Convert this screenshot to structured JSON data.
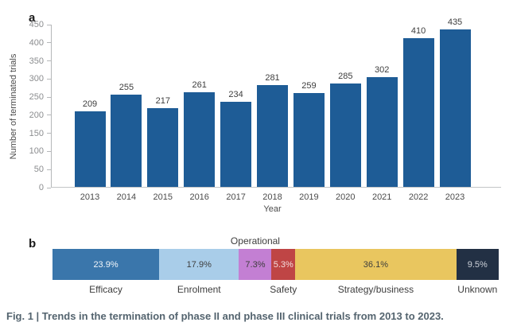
{
  "figure": {
    "caption": "Fig. 1 | Trends in the termination of phase II and phase III clinical trials from 2013 to 2023."
  },
  "panel_a": {
    "label": "a"
  },
  "panel_b": {
    "label": "b"
  },
  "colors": {
    "bar_blue": "#1e5c96",
    "axis_gray": "#b5b7b9",
    "caption_blue_gray": "#54646f"
  },
  "chart_data": [
    {
      "type": "bar",
      "title": "",
      "categories": [
        "2013",
        "2014",
        "2015",
        "2016",
        "2017",
        "2018",
        "2019",
        "2020",
        "2021",
        "2022",
        "2023"
      ],
      "values": [
        209,
        255,
        217,
        261,
        234,
        281,
        259,
        285,
        302,
        410,
        435
      ],
      "value_labels": [
        "209",
        "255",
        "217",
        "261",
        "234",
        "281",
        "259",
        "285",
        "302",
        "410",
        "435"
      ],
      "xlabel": "Year",
      "ylabel": "Number of terminated trials",
      "ylim": [
        0,
        450
      ],
      "yticks": [
        0,
        50,
        100,
        150,
        200,
        250,
        300,
        350,
        400,
        450
      ],
      "ytick_labels": [
        "0",
        "50",
        "100",
        "150",
        "200",
        "250",
        "300",
        "350",
        "400",
        "450"
      ],
      "grid": false,
      "legend": null,
      "bar_color": "#1e5c96"
    },
    {
      "type": "stacked-bar-horizontal",
      "title": "",
      "total": 100.0,
      "segments": [
        {
          "label": "Efficacy",
          "value": 23.9,
          "display": "23.9%",
          "color": "#3a76ab",
          "text_color": "#f2f6fa",
          "label_position": "below"
        },
        {
          "label": "Enrolment",
          "value": 17.9,
          "display": "17.9%",
          "color": "#a9cde9",
          "text_color": "#3d3d3d",
          "label_position": "below"
        },
        {
          "label": "Operational",
          "value": 7.3,
          "display": "7.3%",
          "color": "#c37fd3",
          "text_color": "#3d3d3d",
          "label_position": "above"
        },
        {
          "label": "Safety",
          "value": 5.3,
          "display": "5.3%",
          "color": "#bf4545",
          "text_color": "#f3dede",
          "label_position": "below"
        },
        {
          "label": "Strategy/business",
          "value": 36.1,
          "display": "36.1%",
          "color": "#e9c65f",
          "text_color": "#3d3d3d",
          "label_position": "below"
        },
        {
          "label": "Unknown",
          "value": 9.5,
          "display": "9.5%",
          "color": "#223044",
          "text_color": "#ccd1d8",
          "label_position": "below"
        }
      ]
    }
  ]
}
